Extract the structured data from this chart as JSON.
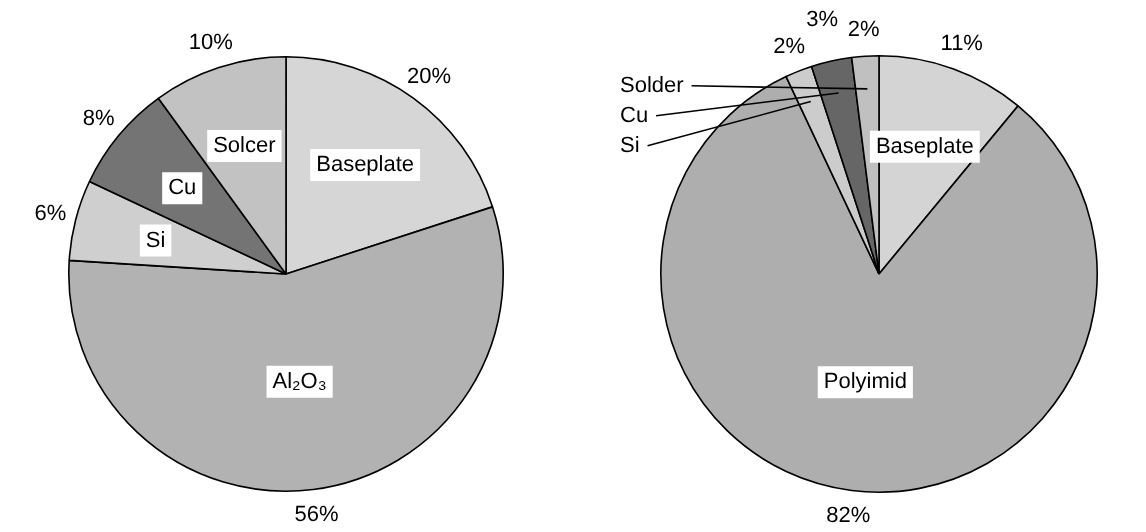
{
  "chart_data": [
    {
      "type": "pie",
      "categories": [
        "Baseplate",
        "Al₂O₃",
        "Si",
        "Cu",
        "Solcer"
      ],
      "values": [
        20,
        56,
        6,
        8,
        10
      ],
      "value_labels": [
        "20%",
        "56%",
        "6%",
        "8%",
        "10%"
      ],
      "colors": [
        "#d6d6d6",
        "#b2b2b2",
        "#cfcfcf",
        "#747474",
        "#c2c2c2"
      ],
      "legend": false
    },
    {
      "type": "pie",
      "categories": [
        "Baseplate",
        "Polyimid",
        "Si",
        "Cu",
        "Solder"
      ],
      "values": [
        11,
        82,
        2,
        3,
        2
      ],
      "value_labels": [
        "11%",
        "82%",
        "2%",
        "3%",
        "2%"
      ],
      "colors": [
        "#d4d4d4",
        "#aeaeae",
        "#cccccc",
        "#666666",
        "#c0c0c0"
      ],
      "legend": false
    }
  ]
}
